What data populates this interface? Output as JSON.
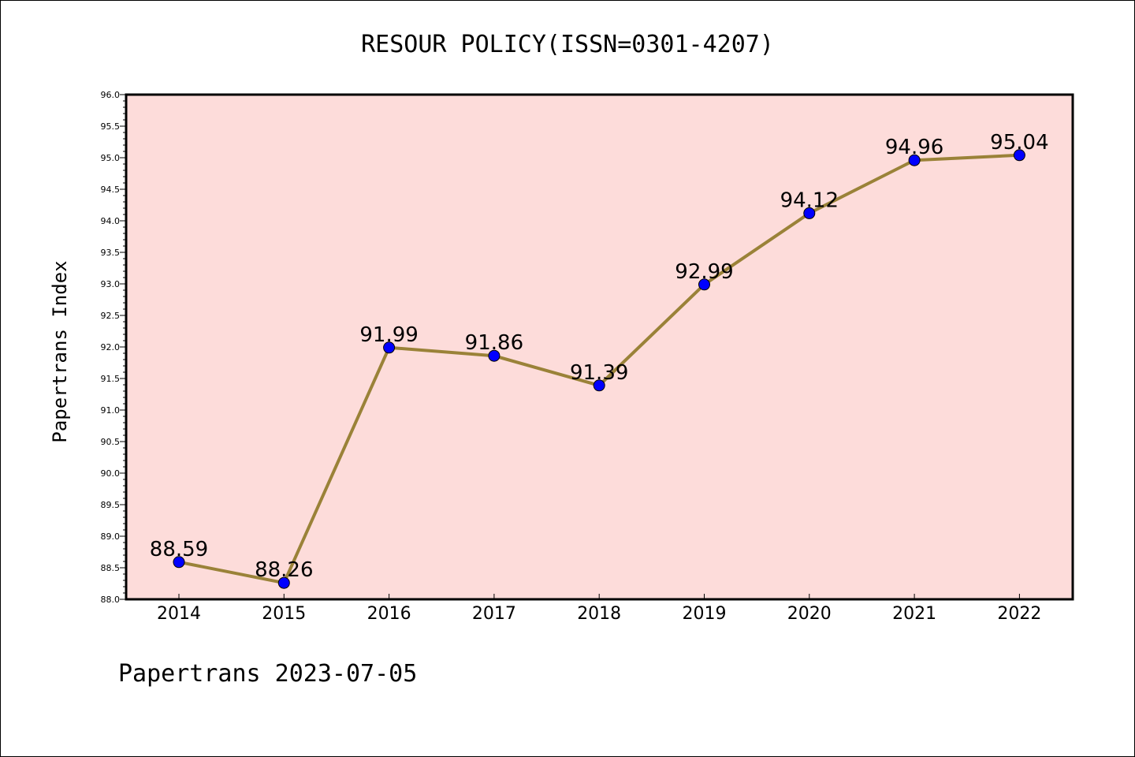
{
  "chart_data": {
    "type": "line",
    "title": "RESOUR POLICY(ISSN=0301-4207)",
    "xlabel": "",
    "ylabel": "Papertrans Index",
    "categories": [
      "2014",
      "2015",
      "2016",
      "2017",
      "2018",
      "2019",
      "2020",
      "2021",
      "2022"
    ],
    "series": [
      {
        "values": [
          88.59,
          88.26,
          91.99,
          91.86,
          91.39,
          92.99,
          94.12,
          94.96,
          95.04
        ],
        "labels": [
          "88.59",
          "88.26",
          "91.99",
          "91.86",
          "91.39",
          "92.99",
          "94.12",
          "94.96",
          "95.04"
        ]
      }
    ],
    "ylim": [
      88.0,
      96.0
    ],
    "yticks": [
      "88.0",
      "88.5",
      "89.0",
      "89.5",
      "90.0",
      "90.5",
      "91.0",
      "91.5",
      "92.0",
      "92.5",
      "93.0",
      "93.5",
      "94.0",
      "94.5",
      "95.0",
      "95.5",
      "96.0"
    ],
    "grid": false,
    "legend": "none",
    "colors": {
      "plot_background": "#fddcda",
      "line": "#9a8238",
      "marker": "#0000ff"
    }
  },
  "footer": "Papertrans 2023-07-05"
}
